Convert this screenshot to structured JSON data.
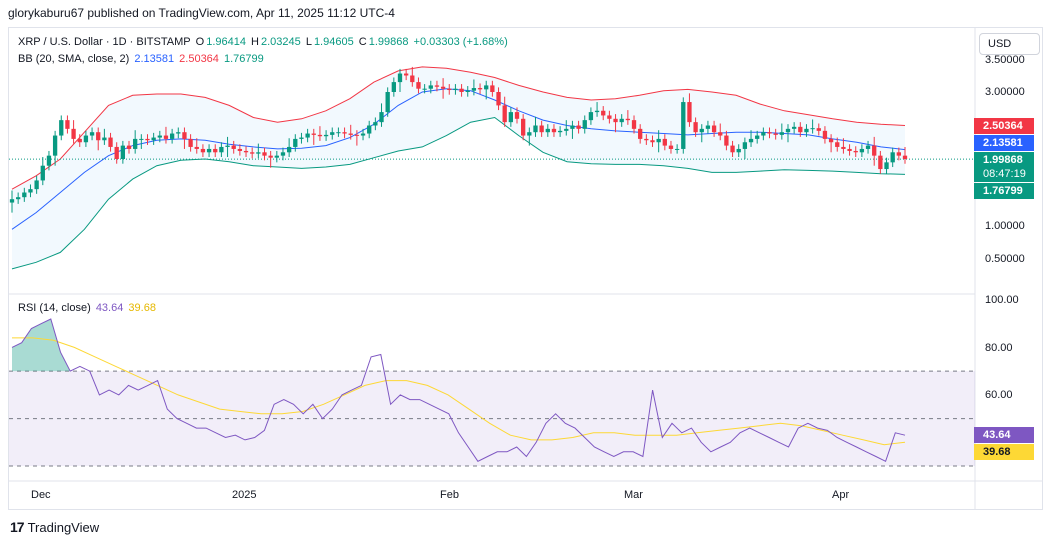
{
  "header": {
    "published": "glorykaburu67 published on TradingView.com, Apr 11, 2025 11:12 UTC-4"
  },
  "legend": {
    "symbol": "XRP / U.S. Dollar · 1D · BITSTAMP",
    "o_label": "O",
    "o_value": "1.96414",
    "h_label": "H",
    "h_value": "2.03245",
    "l_label": "L",
    "l_value": "1.94605",
    "c_label": "C",
    "c_value": "1.99868",
    "change": "+0.03303 (+1.68%)",
    "bb_label": "BB (20, SMA, close, 2)",
    "bb_basis": "2.13581",
    "bb_upper": "2.50364",
    "bb_lower": "1.76799",
    "rsi_label": "RSI (14, close)",
    "rsi_value": "43.64",
    "rsi_ma": "39.68"
  },
  "currency_button": "USD",
  "price_axis": {
    "labels": [
      "3.50000",
      "3.00000",
      "1.00000",
      "0.50000"
    ]
  },
  "price_tags": {
    "upper": "2.50364",
    "basis": "2.13581",
    "close": "1.99868",
    "countdown": "08:47:19",
    "lower": "1.76799"
  },
  "rsi_axis": {
    "labels": [
      "100.00",
      "80.00",
      "60.00"
    ]
  },
  "rsi_tags": {
    "rsi": "43.64",
    "ma": "39.68"
  },
  "time_axis": {
    "labels": [
      "Dec",
      "2025",
      "Feb",
      "Mar",
      "Apr"
    ]
  },
  "footer": {
    "brand": "TradingView"
  },
  "colors": {
    "up": "#089981",
    "down": "#f23645",
    "bb_upper": "#f23645",
    "bb_basis": "#2962ff",
    "bb_lower": "#089981",
    "rsi": "#7e57c2",
    "rsi_ma": "#fdd835"
  },
  "chart_data": [
    {
      "type": "candlestick",
      "title": "XRP / U.S. Dollar · 1D · BITSTAMP",
      "x_labels": [
        "Dec",
        "2025",
        "Feb",
        "Mar",
        "Apr"
      ],
      "y_ticks": [
        0.5,
        1.0,
        3.0,
        3.5
      ],
      "close": [
        1.4,
        1.43,
        1.5,
        1.55,
        1.68,
        1.9,
        2.05,
        2.35,
        2.58,
        2.45,
        2.3,
        2.25,
        2.35,
        2.4,
        2.28,
        2.32,
        2.18,
        2.0,
        2.2,
        2.15,
        2.3,
        2.3,
        2.28,
        2.32,
        2.35,
        2.3,
        2.38,
        2.4,
        2.3,
        2.18,
        2.15,
        2.1,
        2.15,
        2.1,
        2.18,
        2.2,
        2.15,
        2.12,
        2.1,
        2.08,
        2.1,
        2.05,
        2.02,
        2.05,
        2.1,
        2.18,
        2.3,
        2.32,
        2.38,
        2.36,
        2.34,
        2.36,
        2.4,
        2.4,
        2.38,
        2.36,
        2.35,
        2.38,
        2.5,
        2.55,
        2.7,
        3.0,
        3.15,
        3.28,
        3.25,
        3.15,
        3.05,
        3.05,
        3.1,
        3.08,
        3.05,
        3.03,
        3.05,
        3.0,
        3.02,
        3.06,
        3.04,
        3.1,
        3.0,
        2.8,
        2.55,
        2.7,
        2.6,
        2.35,
        2.4,
        2.5,
        2.4,
        2.45,
        2.4,
        2.42,
        2.45,
        2.5,
        2.45,
        2.58,
        2.7,
        2.72,
        2.65,
        2.6,
        2.55,
        2.6,
        2.58,
        2.45,
        2.3,
        2.28,
        2.25,
        2.3,
        2.2,
        2.15,
        2.15,
        2.85,
        2.55,
        2.4,
        2.45,
        2.5,
        2.4,
        2.35,
        2.2,
        2.1,
        2.15,
        2.25,
        2.3,
        2.35,
        2.4,
        2.38,
        2.36,
        2.4,
        2.45,
        2.48,
        2.4,
        2.45,
        2.46,
        2.42,
        2.3,
        2.25,
        2.18,
        2.15,
        2.12,
        2.1,
        2.15,
        2.2,
        2.05,
        1.85,
        1.95,
        2.1,
        2.05,
        2.0
      ],
      "bb_upper": [
        3.1,
        3.12,
        3.11,
        3.08,
        3.02,
        2.95,
        2.9,
        2.85,
        2.8,
        2.75,
        2.62,
        2.5
      ],
      "bb_basis": [
        2.32,
        2.34,
        2.33,
        2.3,
        2.27,
        2.24,
        2.21,
        2.18,
        2.16,
        2.14
      ],
      "bb_lower": [
        1.75,
        1.76,
        1.78,
        1.8,
        1.82,
        1.8,
        1.78,
        1.77
      ],
      "last": {
        "open": 1.96414,
        "high": 2.03245,
        "low": 1.94605,
        "close": 1.99868
      }
    },
    {
      "type": "line",
      "title": "RSI (14, close)",
      "y_ticks": [
        60,
        80,
        100
      ],
      "bands": [
        30,
        50,
        70
      ],
      "series": [
        {
          "name": "RSI",
          "values": [
            80,
            82,
            88,
            90,
            92,
            78,
            70,
            72,
            70,
            60,
            62,
            60,
            64,
            62,
            64,
            66,
            54,
            50,
            48,
            46,
            46,
            44,
            42,
            43,
            41,
            42,
            45,
            56,
            58,
            56,
            52,
            56,
            50,
            54,
            60,
            62,
            64,
            76,
            77,
            56,
            60,
            58,
            58,
            56,
            54,
            52,
            44,
            38,
            32,
            34,
            36,
            36,
            38,
            34,
            40,
            48,
            52,
            48,
            46,
            42,
            38,
            36,
            34,
            36,
            36,
            34,
            62,
            42,
            48,
            44,
            46,
            40,
            36,
            38,
            40,
            44,
            46,
            44,
            42,
            40,
            38,
            46,
            48,
            46,
            45,
            42,
            40,
            38,
            36,
            34,
            32,
            44,
            43
          ]
        },
        {
          "name": "MA",
          "values": [
            84,
            84,
            83,
            80,
            76,
            72,
            68,
            64,
            60,
            57,
            54,
            53,
            52,
            52,
            53,
            56,
            60,
            64,
            66,
            66,
            64,
            60,
            54,
            48,
            43,
            41,
            41,
            42,
            44,
            44,
            43,
            43,
            43,
            44,
            45,
            46,
            47,
            48,
            47,
            45,
            43,
            41,
            39,
            40
          ]
        }
      ]
    }
  ]
}
